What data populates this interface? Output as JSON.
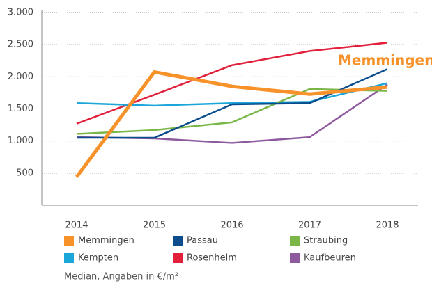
{
  "chart_data": {
    "type": "line",
    "categories": [
      "2014",
      "2015",
      "2016",
      "2017",
      "2018"
    ],
    "series": [
      {
        "name": "Memmingen",
        "color": "#f7922a",
        "values": [
          440,
          2075,
          1850,
          1730,
          1840
        ]
      },
      {
        "name": "Passau",
        "color": "#0b4d8c",
        "values": [
          1050,
          1050,
          1570,
          1590,
          2120
        ]
      },
      {
        "name": "Straubing",
        "color": "#7ab648",
        "values": [
          1110,
          1170,
          1290,
          1810,
          1780
        ]
      },
      {
        "name": "Kempten",
        "color": "#1aa6d9",
        "values": [
          1590,
          1550,
          1590,
          1610,
          1900
        ]
      },
      {
        "name": "Rosenheim",
        "color": "#e2203c",
        "values": [
          1270,
          1720,
          2180,
          2400,
          2530
        ]
      },
      {
        "name": "Kaufbeuren",
        "color": "#8e5a9e",
        "values": [
          1060,
          1040,
          970,
          1060,
          1880
        ]
      }
    ],
    "annotation": "Memmingen",
    "note": "Median, Angaben in €/m²",
    "ylim": [
      0,
      3000
    ],
    "yticks": [
      500,
      {
        "value": 1000,
        "label": "1.000"
      },
      {
        "value": 1500,
        "label": "1.500"
      },
      {
        "value": 2000,
        "label": "2.000"
      },
      {
        "value": 2500,
        "label": "2.500"
      },
      {
        "value": 3000,
        "label": "3.000"
      }
    ],
    "grid": true
  }
}
